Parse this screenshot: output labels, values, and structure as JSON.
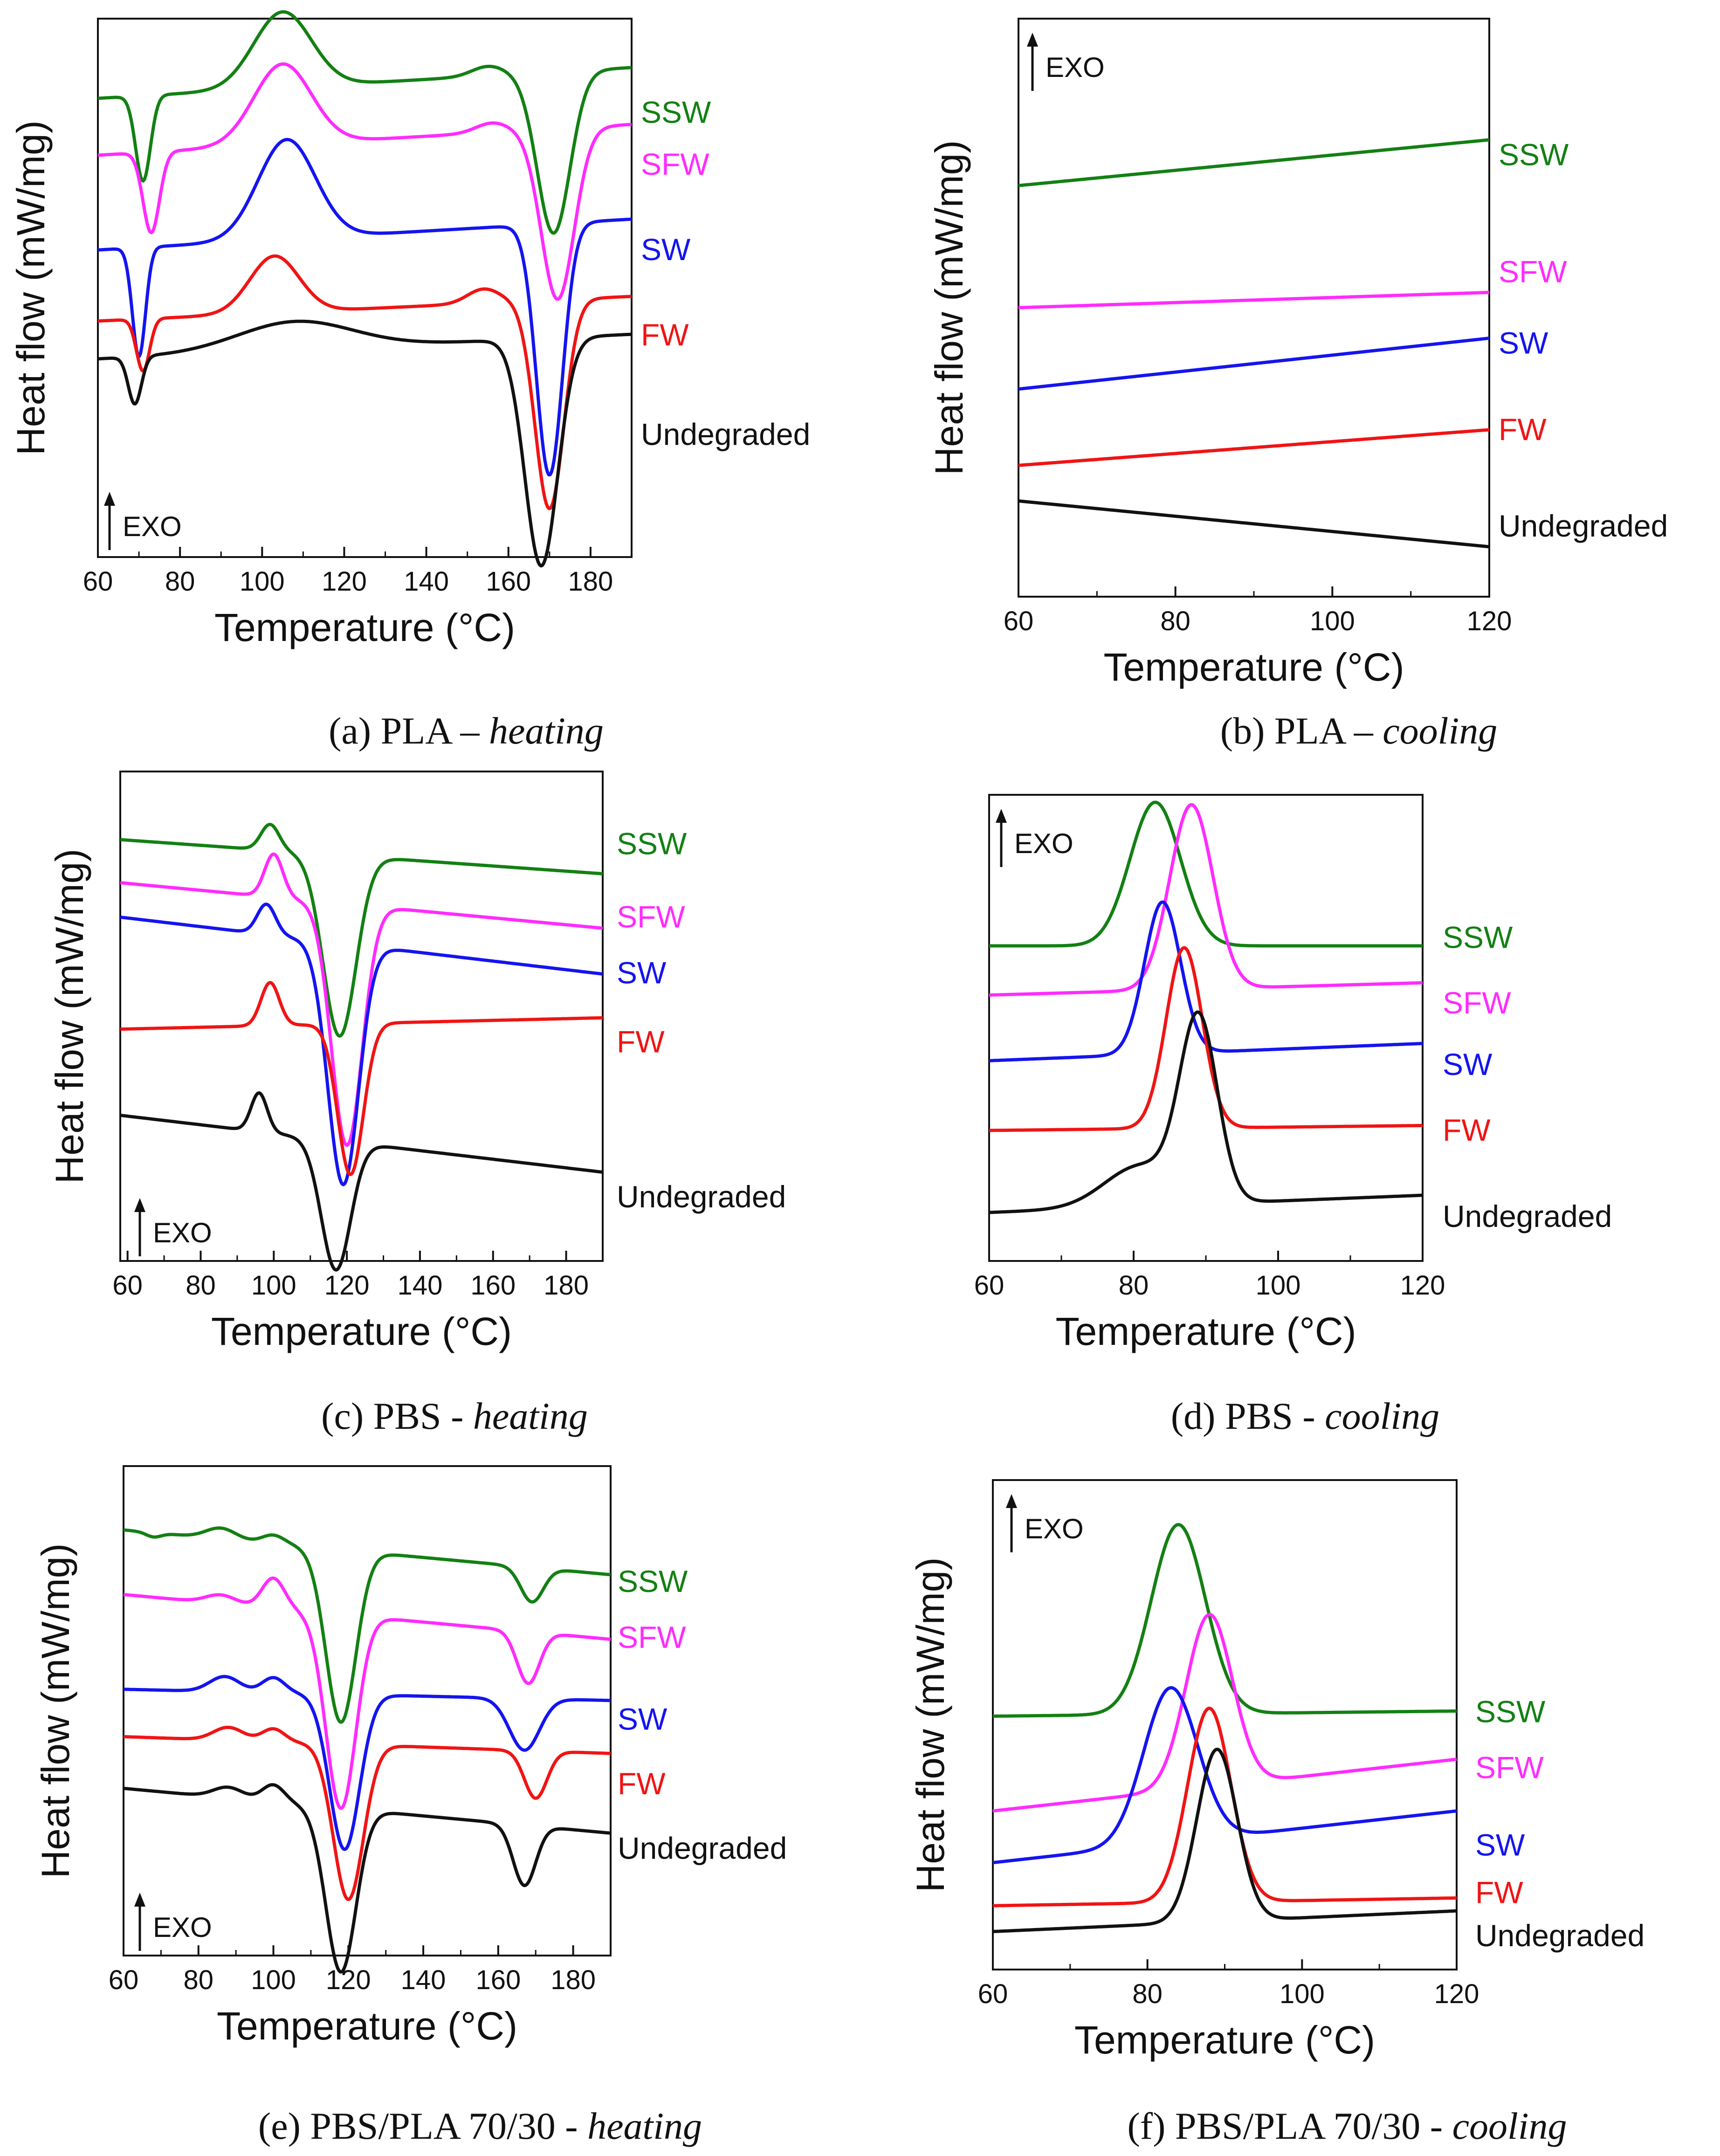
{
  "colors": {
    "SSW": "#138013",
    "SFW": "#ff2bff",
    "SW": "#1414f0",
    "FW": "#f01414",
    "Undegraded": "#111111"
  },
  "chart_data": [
    {
      "type": "line",
      "id": "a",
      "caption_main": "(a)  PLA – ",
      "caption_italic": "heating",
      "xlabel": "Temperature (°C)",
      "ylabel": "Heat flow (mW/mg)",
      "xlim": [
        60,
        190
      ],
      "xticks": [
        "60",
        "80",
        "100",
        "120",
        "140",
        "160",
        "180"
      ],
      "exo_label": "EXO",
      "series": [
        {
          "name": "SSW",
          "baseline": 0.9,
          "slope": 0.0005,
          "labelY": 0.87,
          "features": [
            {
              "x": 71,
              "a": -0.18,
              "w": 1.8
            },
            {
              "x": 105,
              "a": 0.16,
              "w": 7
            },
            {
              "x": 155,
              "a": 0.02,
              "w": 4
            },
            {
              "x": 171,
              "a": -0.34,
              "w": 4
            }
          ]
        },
        {
          "name": "SFW",
          "baseline": 0.78,
          "slope": 0.0005,
          "labelY": 0.76,
          "features": [
            {
              "x": 73,
              "a": -0.17,
              "w": 2
            },
            {
              "x": 105,
              "a": 0.17,
              "w": 7
            },
            {
              "x": 156,
              "a": 0.02,
              "w": 4
            },
            {
              "x": 172,
              "a": -0.36,
              "w": 4
            }
          ]
        },
        {
          "name": "SW",
          "baseline": 0.58,
          "slope": 0.0005,
          "labelY": 0.58,
          "features": [
            {
              "x": 70,
              "a": -0.23,
              "w": 1.6
            },
            {
              "x": 106,
              "a": 0.21,
              "w": 7
            },
            {
              "x": 170,
              "a": -0.53,
              "w": 3.2
            }
          ]
        },
        {
          "name": "FW",
          "baseline": 0.43,
          "slope": 0.0004,
          "labelY": 0.4,
          "features": [
            {
              "x": 71,
              "a": -0.11,
              "w": 1.6
            },
            {
              "x": 103,
              "a": 0.12,
              "w": 6
            },
            {
              "x": 154,
              "a": 0.03,
              "w": 4
            },
            {
              "x": 170,
              "a": -0.44,
              "w": 3.5
            }
          ]
        },
        {
          "name": "Undegraded",
          "baseline": 0.35,
          "slope": 0.0004,
          "labelY": 0.19,
          "features": [
            {
              "x": 69,
              "a": -0.1,
              "w": 1.6
            },
            {
              "x": 108,
              "a": 0.06,
              "w": 14
            },
            {
              "x": 168,
              "a": -0.48,
              "w": 4
            }
          ]
        }
      ]
    },
    {
      "type": "line",
      "id": "b",
      "caption_main": "(b)  PLA – ",
      "caption_italic": "cooling",
      "xlabel": "Temperature (°C)",
      "ylabel": "Heat flow (mW/mg)",
      "xlim": [
        60,
        120
      ],
      "xticks": [
        "60",
        "80",
        "100",
        "120"
      ],
      "exo_label": "EXO",
      "series": [
        {
          "name": "SSW",
          "start": 0.74,
          "end": 0.83,
          "labelY": 0.8
        },
        {
          "name": "SFW",
          "start": 0.5,
          "end": 0.53,
          "labelY": 0.57
        },
        {
          "name": "SW",
          "start": 0.34,
          "end": 0.44,
          "labelY": 0.43
        },
        {
          "name": "FW",
          "start": 0.19,
          "end": 0.26,
          "labelY": 0.26
        },
        {
          "name": "Undegraded",
          "start": 0.12,
          "end": 0.03,
          "labelY": 0.07
        }
      ]
    },
    {
      "type": "line",
      "id": "c",
      "caption_main": "(c)  PBS - ",
      "caption_italic": "heating",
      "xlabel": "Temperature (°C)",
      "ylabel": "Heat flow (mW/mg)",
      "xlim": [
        58,
        190
      ],
      "xticks": [
        "60",
        "80",
        "100",
        "120",
        "140",
        "160",
        "180"
      ],
      "exo_label": "EXO",
      "series": [
        {
          "name": "SSW",
          "baseline": 0.91,
          "slope": -0.0006,
          "labelY": 0.9,
          "features": [
            {
              "x": 99,
              "a": 0.06,
              "w": 2.5
            },
            {
              "x": 118,
              "a": -0.42,
              "w": 4.5
            }
          ]
        },
        {
          "name": "SFW",
          "baseline": 0.81,
          "slope": -0.0008,
          "labelY": 0.73,
          "features": [
            {
              "x": 100,
              "a": 0.1,
              "w": 2.5
            },
            {
              "x": 120,
              "a": -0.56,
              "w": 4.2
            }
          ]
        },
        {
          "name": "SW",
          "baseline": 0.73,
          "slope": -0.001,
          "labelY": 0.6,
          "features": [
            {
              "x": 98,
              "a": 0.07,
              "w": 2.5
            },
            {
              "x": 119,
              "a": -0.56,
              "w": 4.2
            }
          ]
        },
        {
          "name": "FW",
          "baseline": 0.47,
          "slope": 0.0002,
          "labelY": 0.44,
          "features": [
            {
              "x": 99,
              "a": 0.1,
              "w": 2.5
            },
            {
              "x": 121,
              "a": -0.35,
              "w": 3.5
            }
          ]
        },
        {
          "name": "Undegraded",
          "baseline": 0.27,
          "slope": -0.001,
          "labelY": 0.08,
          "features": [
            {
              "x": 96,
              "a": 0.09,
              "w": 2.2
            },
            {
              "x": 117,
              "a": -0.3,
              "w": 4
            }
          ]
        }
      ]
    },
    {
      "type": "line",
      "id": "d",
      "caption_main": "(d)  PBS - ",
      "caption_italic": "cooling",
      "xlabel": "Temperature (°C)",
      "ylabel": "",
      "xlim": [
        60,
        120
      ],
      "xticks": [
        "60",
        "80",
        "100",
        "120"
      ],
      "exo_label": "EXO",
      "series": [
        {
          "name": "SSW",
          "baseline": 0.7,
          "slope": 0.0,
          "labelY": 0.72,
          "features": [
            {
              "x": 83,
              "a": 0.35,
              "w": 3.5
            }
          ]
        },
        {
          "name": "SFW",
          "baseline": 0.58,
          "slope": 0.0005,
          "labelY": 0.56,
          "features": [
            {
              "x": 88,
              "a": 0.45,
              "w": 3
            }
          ]
        },
        {
          "name": "SW",
          "baseline": 0.42,
          "slope": 0.0007,
          "labelY": 0.41,
          "features": [
            {
              "x": 84,
              "a": 0.37,
              "w": 2.5
            }
          ]
        },
        {
          "name": "FW",
          "baseline": 0.25,
          "slope": 0.0002,
          "labelY": 0.25,
          "features": [
            {
              "x": 87,
              "a": 0.44,
              "w": 2.5
            }
          ]
        },
        {
          "name": "Undegraded",
          "baseline": 0.05,
          "slope": 0.0007,
          "labelY": 0.04,
          "features": [
            {
              "x": 81,
              "a": 0.1,
              "w": 5
            },
            {
              "x": 89,
              "a": 0.44,
              "w": 2.6
            }
          ]
        }
      ]
    },
    {
      "type": "line",
      "id": "e",
      "caption_main": "(e) PBS/PLA 70/30 - ",
      "caption_italic": "heating",
      "xlabel": "Temperature (°C)",
      "ylabel": "Heat flow (mW/mg)",
      "xlim": [
        60,
        190
      ],
      "xticks": [
        "60",
        "80",
        "100",
        "120",
        "140",
        "160",
        "180"
      ],
      "exo_label": "EXO",
      "series": [
        {
          "name": "SSW",
          "baseline": 0.92,
          "slope": -0.0008,
          "labelY": 0.8,
          "features": [
            {
              "x": 68,
              "a": -0.01,
              "w": 2
            },
            {
              "x": 86,
              "a": 0.025,
              "w": 4
            },
            {
              "x": 100,
              "a": 0.02,
              "w": 3
            },
            {
              "x": 118,
              "a": -0.4,
              "w": 4
            },
            {
              "x": 169,
              "a": -0.08,
              "w": 3
            }
          ]
        },
        {
          "name": "SFW",
          "baseline": 0.77,
          "slope": -0.0008,
          "labelY": 0.67,
          "features": [
            {
              "x": 86,
              "a": 0.02,
              "w": 4
            },
            {
              "x": 100,
              "a": 0.07,
              "w": 3
            },
            {
              "x": 118,
              "a": -0.45,
              "w": 4
            },
            {
              "x": 168,
              "a": -0.12,
              "w": 3
            }
          ]
        },
        {
          "name": "SW",
          "baseline": 0.55,
          "slope": -0.0002,
          "labelY": 0.48,
          "features": [
            {
              "x": 87,
              "a": 0.035,
              "w": 4
            },
            {
              "x": 100,
              "a": 0.035,
              "w": 3
            },
            {
              "x": 119,
              "a": -0.36,
              "w": 4
            },
            {
              "x": 167,
              "a": -0.12,
              "w": 4
            }
          ]
        },
        {
          "name": "FW",
          "baseline": 0.44,
          "slope": -0.0003,
          "labelY": 0.33,
          "features": [
            {
              "x": 88,
              "a": 0.03,
              "w": 4
            },
            {
              "x": 100,
              "a": 0.03,
              "w": 3
            },
            {
              "x": 120,
              "a": -0.36,
              "w": 4
            },
            {
              "x": 170,
              "a": -0.11,
              "w": 3
            }
          ]
        },
        {
          "name": "Undegraded",
          "baseline": 0.32,
          "slope": -0.0008,
          "labelY": 0.18,
          "features": [
            {
              "x": 88,
              "a": 0.025,
              "w": 4
            },
            {
              "x": 100,
              "a": 0.04,
              "w": 3
            },
            {
              "x": 118,
              "a": -0.38,
              "w": 4
            },
            {
              "x": 167,
              "a": -0.14,
              "w": 3
            }
          ]
        }
      ]
    },
    {
      "type": "line",
      "id": "f",
      "caption_main": "(f) PBS/PLA 70/30 - ",
      "caption_italic": "cooling",
      "xlabel": "Temperature (°C)",
      "ylabel": "Heat flow (mW/mg)",
      "xlim": [
        60,
        120
      ],
      "xticks": [
        "60",
        "80",
        "100",
        "120"
      ],
      "exo_label": "EXO",
      "series": [
        {
          "name": "SSW",
          "baseline": 0.52,
          "slope": 0.0002,
          "labelY": 0.53,
          "features": [
            {
              "x": 84,
              "a": 0.44,
              "w": 3.5
            }
          ]
        },
        {
          "name": "SFW",
          "baseline": 0.3,
          "slope": 0.002,
          "labelY": 0.4,
          "features": [
            {
              "x": 88,
              "a": 0.4,
              "w": 3
            }
          ]
        },
        {
          "name": "SW",
          "baseline": 0.18,
          "slope": 0.002,
          "labelY": 0.22,
          "features": [
            {
              "x": 83,
              "a": 0.36,
              "w": 3.5
            }
          ]
        },
        {
          "name": "FW",
          "baseline": 0.08,
          "slope": 0.0003,
          "labelY": 0.11,
          "features": [
            {
              "x": 88,
              "a": 0.45,
              "w": 2.8
            }
          ]
        },
        {
          "name": "Undegraded",
          "baseline": 0.02,
          "slope": 0.0008,
          "labelY": 0.01,
          "features": [
            {
              "x": 89,
              "a": 0.4,
              "w": 2.6
            }
          ]
        }
      ]
    }
  ]
}
